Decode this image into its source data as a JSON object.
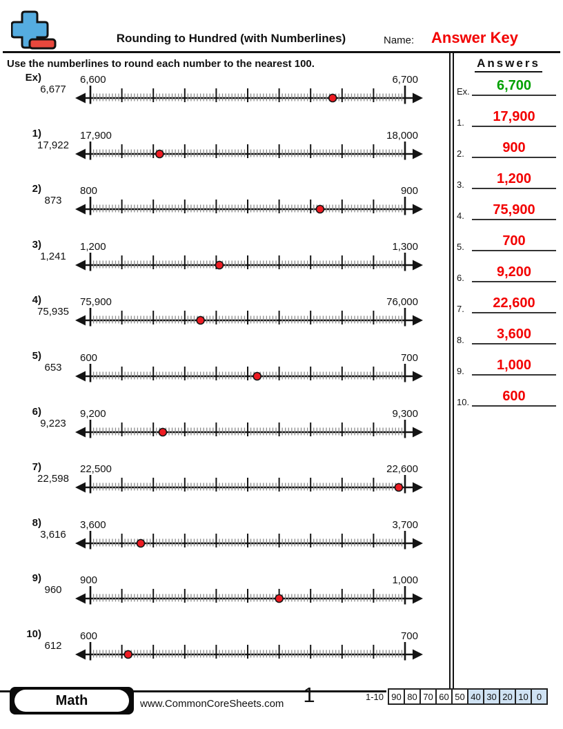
{
  "header": {
    "title": "Rounding to Hundred (with Numberlines)",
    "name_label": "Name:",
    "answer_key_text": "Answer Key"
  },
  "instruction": "Use the numberlines to round each number to the nearest 100.",
  "answers_panel": {
    "title": "Answers",
    "items": [
      {
        "label": "Ex.",
        "value": "6,700",
        "color": "#00a000"
      },
      {
        "label": "1.",
        "value": "17,900",
        "color": "#f20000"
      },
      {
        "label": "2.",
        "value": "900",
        "color": "#f20000"
      },
      {
        "label": "3.",
        "value": "1,200",
        "color": "#f20000"
      },
      {
        "label": "4.",
        "value": "75,900",
        "color": "#f20000"
      },
      {
        "label": "5.",
        "value": "700",
        "color": "#f20000"
      },
      {
        "label": "6.",
        "value": "9,200",
        "color": "#f20000"
      },
      {
        "label": "7.",
        "value": "22,600",
        "color": "#f20000"
      },
      {
        "label": "8.",
        "value": "3,600",
        "color": "#f20000"
      },
      {
        "label": "9.",
        "value": "1,000",
        "color": "#f20000"
      },
      {
        "label": "10.",
        "value": "600",
        "color": "#f20000"
      }
    ]
  },
  "problems": [
    {
      "number_label": "Ex)",
      "value": "6,677",
      "line_min": "6,600",
      "line_max": "6,700",
      "dot_percent": 77
    },
    {
      "number_label": "1)",
      "value": "17,922",
      "line_min": "17,900",
      "line_max": "18,000",
      "dot_percent": 22
    },
    {
      "number_label": "2)",
      "value": "873",
      "line_min": "800",
      "line_max": "900",
      "dot_percent": 73
    },
    {
      "number_label": "3)",
      "value": "1,241",
      "line_min": "1,200",
      "line_max": "1,300",
      "dot_percent": 41
    },
    {
      "number_label": "4)",
      "value": "75,935",
      "line_min": "75,900",
      "line_max": "76,000",
      "dot_percent": 35
    },
    {
      "number_label": "5)",
      "value": "653",
      "line_min": "600",
      "line_max": "700",
      "dot_percent": 53
    },
    {
      "number_label": "6)",
      "value": "9,223",
      "line_min": "9,200",
      "line_max": "9,300",
      "dot_percent": 23
    },
    {
      "number_label": "7)",
      "value": "22,598",
      "line_min": "22,500",
      "line_max": "22,600",
      "dot_percent": 98
    },
    {
      "number_label": "8)",
      "value": "3,616",
      "line_min": "3,600",
      "line_max": "3,700",
      "dot_percent": 16
    },
    {
      "number_label": "9)",
      "value": "960",
      "line_min": "900",
      "line_max": "1,000",
      "dot_percent": 60
    },
    {
      "number_label": "10)",
      "value": "612",
      "line_min": "600",
      "line_max": "700",
      "dot_percent": 12
    }
  ],
  "footer": {
    "badge_label": "Math",
    "website": "www.CommonCoreSheets.com",
    "page_number": "1",
    "score_range_label": "1-10",
    "score_cells": [
      {
        "value": "90",
        "highlighted": false
      },
      {
        "value": "80",
        "highlighted": false
      },
      {
        "value": "70",
        "highlighted": false
      },
      {
        "value": "60",
        "highlighted": false
      },
      {
        "value": "50",
        "highlighted": false
      },
      {
        "value": "40",
        "highlighted": true
      },
      {
        "value": "30",
        "highlighted": true
      },
      {
        "value": "20",
        "highlighted": true
      },
      {
        "value": "10",
        "highlighted": true
      },
      {
        "value": "0",
        "highlighted": true
      }
    ]
  },
  "colors": {
    "answer_key_red": "#f20000",
    "answer_green": "#00a000",
    "dot_red": "#ee1b22",
    "score_highlight": "#cfe2f3",
    "logo_blue": "#55ace0",
    "logo_red": "#e8483d",
    "ink": "#141414"
  }
}
